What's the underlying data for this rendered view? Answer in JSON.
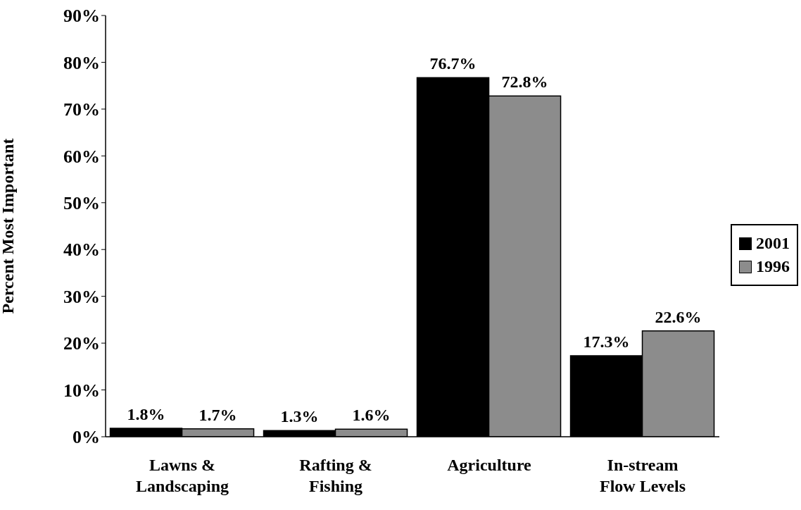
{
  "chart_data": {
    "type": "bar",
    "ylabel": "Percent Most Important",
    "categories": [
      "Lawns &\nLandscaping",
      "Rafting &\nFishing",
      "Agriculture",
      "In-stream\nFlow Levels"
    ],
    "series": [
      {
        "name": "2001",
        "color": "#000000",
        "values": [
          1.8,
          1.3,
          76.7,
          17.3
        ],
        "value_labels": [
          "1.8%",
          "1.3%",
          "76.7%",
          "17.3%"
        ]
      },
      {
        "name": "1996",
        "color": "#8c8c8c",
        "values": [
          1.7,
          1.6,
          72.8,
          22.6
        ],
        "value_labels": [
          "1.7%",
          "1.6%",
          "72.8%",
          "22.6%"
        ]
      }
    ],
    "ylim": [
      0,
      90
    ],
    "yticks": [
      {
        "value": 0,
        "label": "0%"
      },
      {
        "value": 10,
        "label": "10%"
      },
      {
        "value": 20,
        "label": "20%"
      },
      {
        "value": 30,
        "label": "30%"
      },
      {
        "value": 40,
        "label": "40%"
      },
      {
        "value": 50,
        "label": "50%"
      },
      {
        "value": 60,
        "label": "60%"
      },
      {
        "value": 70,
        "label": "70%"
      },
      {
        "value": 80,
        "label": "80%"
      },
      {
        "value": 90,
        "label": "90%"
      }
    ],
    "grid": false,
    "legend": "right"
  }
}
